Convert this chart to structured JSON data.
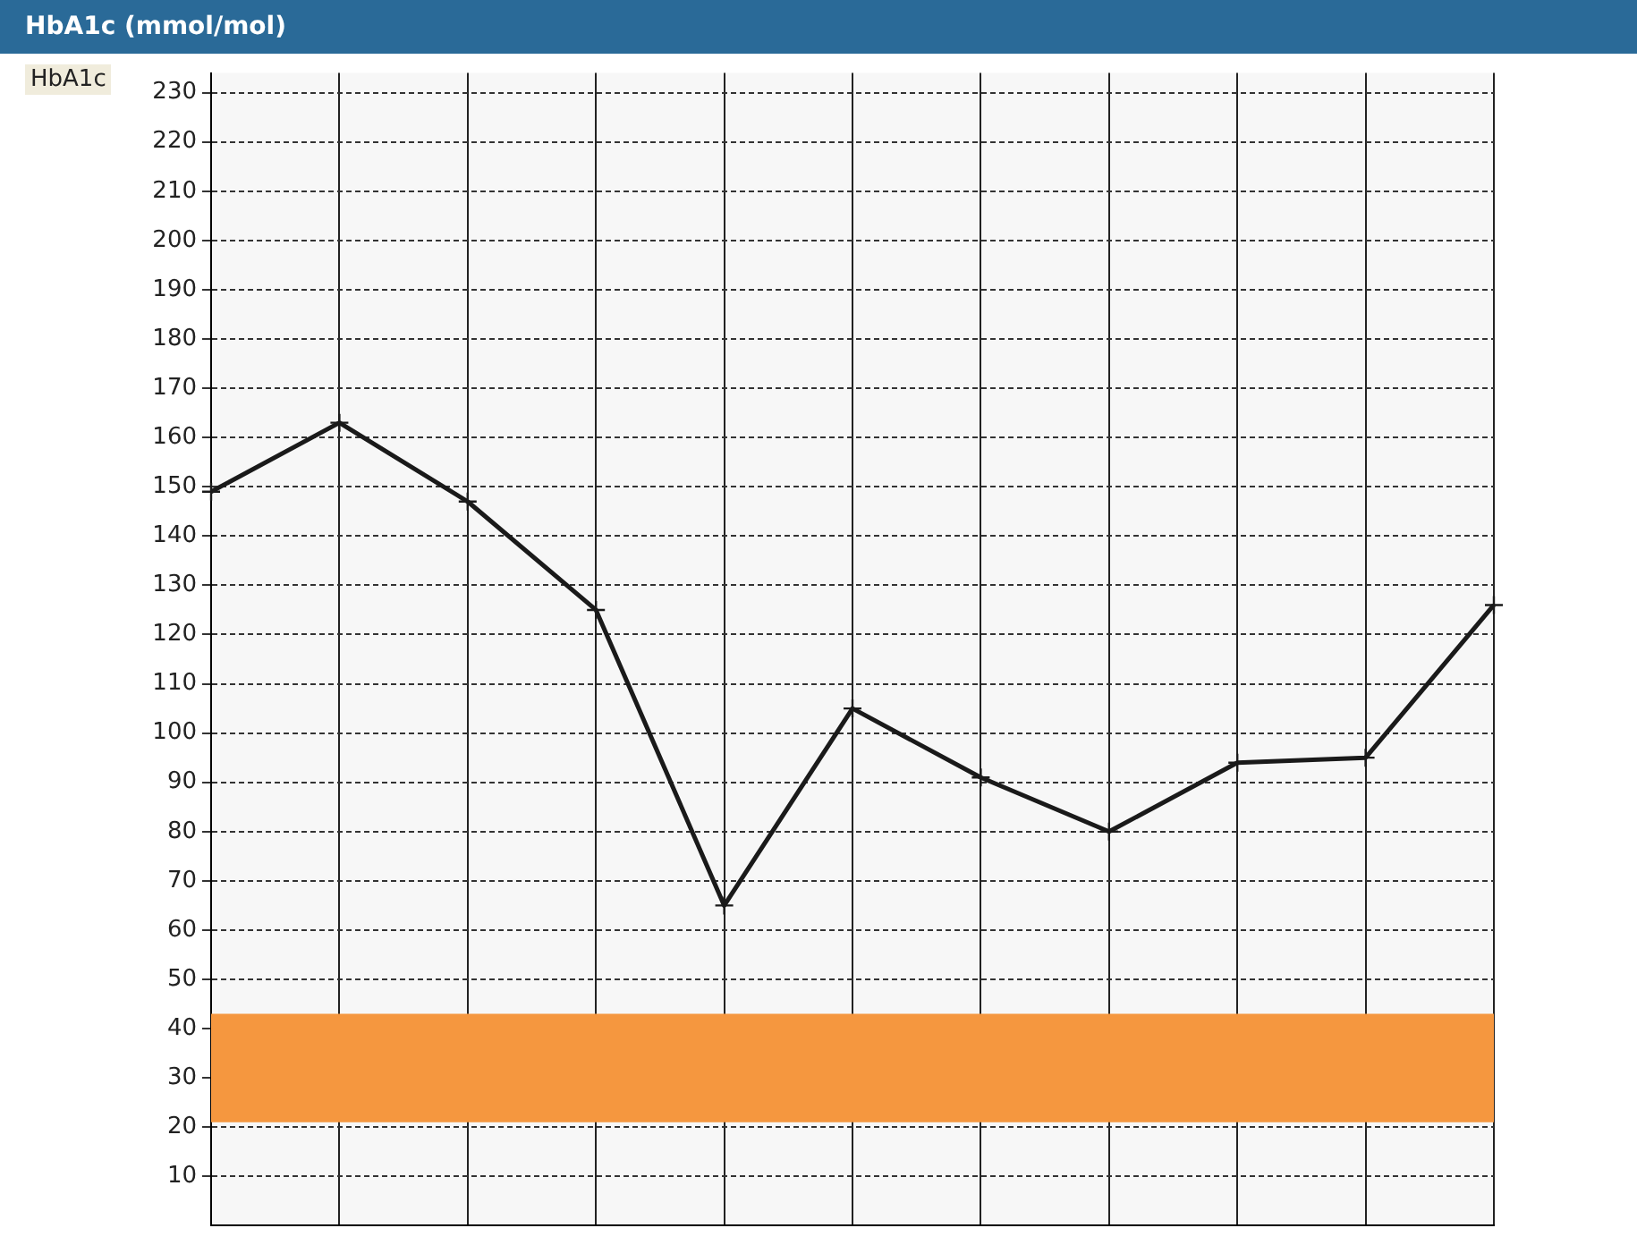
{
  "chart_data": {
    "type": "line",
    "title": "HbA1c (mmol/mol)",
    "ylabel": "HbA1c",
    "categories": [
      null,
      null,
      null,
      null,
      null,
      null,
      null,
      null,
      null,
      null,
      null
    ],
    "series": [
      {
        "color": "#1a1a1a",
        "values": [
          149,
          163,
          147,
          125,
          65,
          105,
          91,
          80,
          94,
          95,
          126
        ]
      }
    ],
    "ylim": [
      0,
      234
    ],
    "yticks": [
      10,
      20,
      30,
      40,
      50,
      60,
      70,
      80,
      90,
      100,
      110,
      120,
      130,
      140,
      150,
      160,
      170,
      180,
      190,
      200,
      210,
      220,
      230
    ],
    "tick_labels": "y",
    "grid": true,
    "marker": "cross",
    "line_style": "solid",
    "bands": [
      {
        "axis": "y",
        "from": 21,
        "to": 43,
        "color": "#f5973f"
      }
    ]
  }
}
